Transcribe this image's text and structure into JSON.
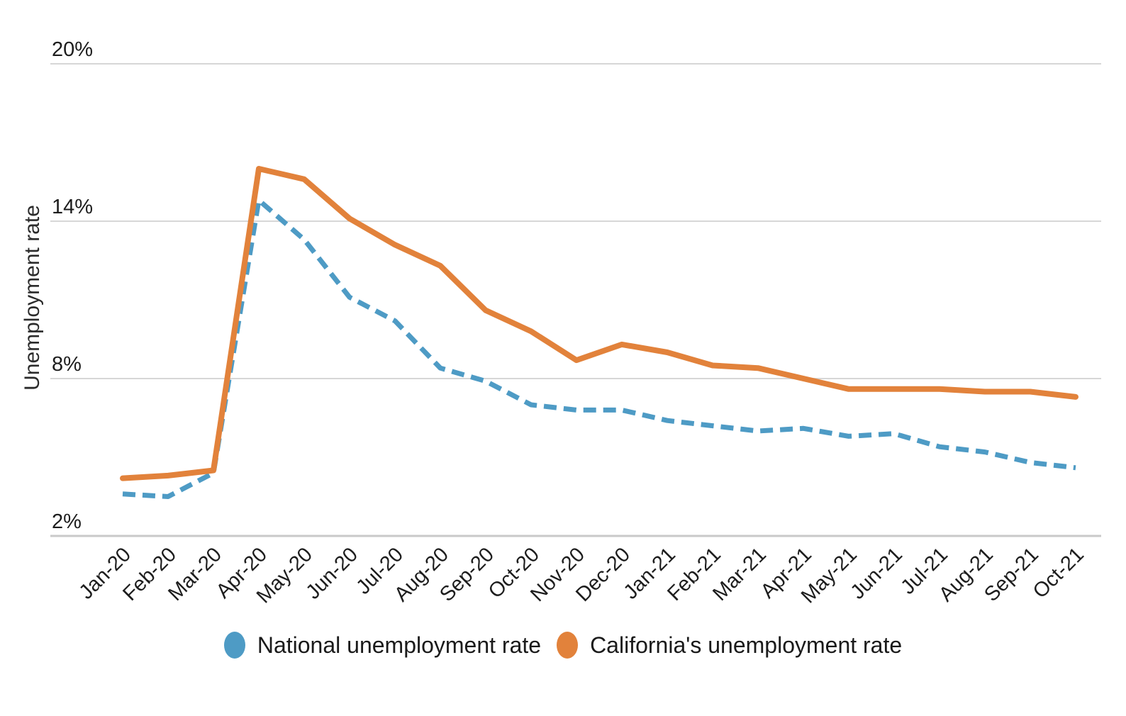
{
  "chart_data": {
    "type": "line",
    "title": "",
    "xlabel": "",
    "ylabel": "Unemployment rate",
    "x": [
      "Jan-20",
      "Feb-20",
      "Mar-20",
      "Apr-20",
      "May-20",
      "Jun-20",
      "Jul-20",
      "Aug-20",
      "Sep-20",
      "Oct-20",
      "Nov-20",
      "Dec-20",
      "Jan-21",
      "Feb-21",
      "Mar-21",
      "Apr-21",
      "May-21",
      "Jun-21",
      "Jul-21",
      "Aug-21",
      "Sep-21",
      "Oct-21"
    ],
    "series": [
      {
        "name": "National unemployment rate",
        "color": "#4E9BC5",
        "line_style": "dashed",
        "values": [
          3.6,
          3.5,
          4.4,
          14.8,
          13.3,
          11.1,
          10.2,
          8.4,
          7.9,
          7.0,
          6.8,
          6.8,
          6.4,
          6.2,
          6.0,
          6.1,
          5.8,
          5.9,
          5.4,
          5.2,
          4.8,
          4.6
        ]
      },
      {
        "name": "California's unemployment rate",
        "color": "#E2823B",
        "line_style": "solid",
        "values": [
          4.2,
          4.3,
          4.5,
          16.0,
          15.6,
          14.1,
          13.1,
          12.3,
          10.6,
          9.8,
          8.7,
          9.3,
          9.0,
          8.5,
          8.4,
          8.0,
          7.6,
          7.6,
          7.6,
          7.5,
          7.5,
          7.3
        ]
      }
    ],
    "yticks": [
      {
        "label": "2%",
        "value": 2
      },
      {
        "label": "8%",
        "value": 8
      },
      {
        "label": "14%",
        "value": 14
      },
      {
        "label": "20%",
        "value": 20
      }
    ],
    "ylim": [
      2,
      20
    ],
    "grid": true,
    "legend_position": "bottom"
  }
}
